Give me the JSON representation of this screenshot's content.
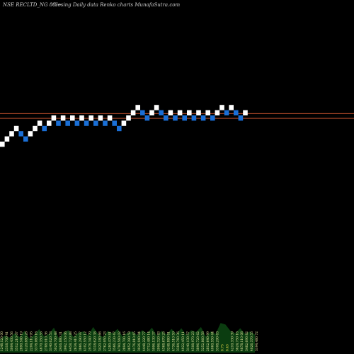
{
  "header": {
    "symbol": "NSE RECLTD_NG 8%~",
    "subtitle": "Closing Daily data  Renko  charts MunafaSutra.com"
  },
  "colors": {
    "background": "#000000",
    "up_brick": "#ffffff",
    "down_brick": "#1a6fd6",
    "level_line": "#b24a2a",
    "volume_fill": "#0b3d10",
    "volume_labels": "#e8e8a0",
    "volume_labels_highlight": "#f4e04d"
  },
  "chart_data": {
    "type": "renko",
    "title": "",
    "xlabel": "",
    "ylabel": "",
    "bricks": [
      {
        "dir": "up",
        "level": 0
      },
      {
        "dir": "up",
        "level": 1
      },
      {
        "dir": "up",
        "level": 2
      },
      {
        "dir": "up",
        "level": 3
      },
      {
        "dir": "down",
        "level": 2
      },
      {
        "dir": "down",
        "level": 1
      },
      {
        "dir": "up",
        "level": 2
      },
      {
        "dir": "up",
        "level": 3
      },
      {
        "dir": "up",
        "level": 4
      },
      {
        "dir": "down",
        "level": 3
      },
      {
        "dir": "up",
        "level": 4
      },
      {
        "dir": "up",
        "level": 5
      },
      {
        "dir": "down",
        "level": 4
      },
      {
        "dir": "up",
        "level": 5
      },
      {
        "dir": "down",
        "level": 4
      },
      {
        "dir": "up",
        "level": 5
      },
      {
        "dir": "down",
        "level": 4
      },
      {
        "dir": "up",
        "level": 5
      },
      {
        "dir": "down",
        "level": 4
      },
      {
        "dir": "up",
        "level": 5
      },
      {
        "dir": "down",
        "level": 4
      },
      {
        "dir": "up",
        "level": 5
      },
      {
        "dir": "down",
        "level": 4
      },
      {
        "dir": "up",
        "level": 5
      },
      {
        "dir": "down",
        "level": 4
      },
      {
        "dir": "down",
        "level": 3
      },
      {
        "dir": "up",
        "level": 4
      },
      {
        "dir": "up",
        "level": 5
      },
      {
        "dir": "up",
        "level": 6
      },
      {
        "dir": "up",
        "level": 7
      },
      {
        "dir": "down",
        "level": 6
      },
      {
        "dir": "down",
        "level": 5
      },
      {
        "dir": "up",
        "level": 6
      },
      {
        "dir": "up",
        "level": 7
      },
      {
        "dir": "down",
        "level": 6
      },
      {
        "dir": "down",
        "level": 5
      },
      {
        "dir": "up",
        "level": 6
      },
      {
        "dir": "down",
        "level": 5
      },
      {
        "dir": "up",
        "level": 6
      },
      {
        "dir": "down",
        "level": 5
      },
      {
        "dir": "up",
        "level": 6
      },
      {
        "dir": "down",
        "level": 5
      },
      {
        "dir": "up",
        "level": 6
      },
      {
        "dir": "down",
        "level": 5
      },
      {
        "dir": "up",
        "level": 6
      },
      {
        "dir": "down",
        "level": 5
      },
      {
        "dir": "up",
        "level": 6
      },
      {
        "dir": "up",
        "level": 7
      },
      {
        "dir": "down",
        "level": 6
      },
      {
        "dir": "up",
        "level": 7
      },
      {
        "dir": "down",
        "level": 6
      },
      {
        "dir": "down",
        "level": 5
      },
      {
        "dir": "up",
        "level": 6
      }
    ],
    "reference_levels": [
      6.35,
      5.45
    ],
    "volume_labels": [
      "1248,120 00",
      "2318,700 41",
      "3004,430 56",
      "3512,210 07",
      "2890,540 19",
      "4120,880 28",
      "2204,110 95",
      "3378,060 16",
      "4670,350 55",
      "2788,910 36",
      "3140,620 53",
      "5024,700 48",
      "2416,880 31",
      "3992,150 06",
      "4458,720 88",
      "2634,410 25",
      "3866,290 97",
      "4102,550 12",
      "2978,340 79",
      "5318,620 38",
      "3420,180 66",
      "2762,950 23",
      "4280,470 81",
      "3566,230 47",
      "4790,560 02",
      "2894,700 16",
      "3652,390 58",
      "4176,810 65",
      "3026,940 04",
      "4448,220 77",
      "3712,480 14",
      "5096,130 37",
      "2906,320 83",
      "4368,670 25",
      "3248,880 81",
      "4736,510 59",
      "3384,760 36",
      "4922,450 11",
      "3140,130 57",
      "4508,970 23",
      "3896,720 62",
      "5252,860 58",
      "2812,640 99",
      "4060,550 44",
      "3308,290 63",
      "6.75",
      "6.43",
      "4210,330 39",
      "3624,750 16",
      "4878,110 08",
      "3482,690 82",
      "4026,370 55",
      "3194,480 72"
    ],
    "volume_levels": [
      0.42,
      0.55,
      0.48,
      0.62,
      0.5,
      0.7,
      0.45,
      0.58,
      0.75,
      0.52,
      0.6,
      0.8,
      0.46,
      0.66,
      0.72,
      0.5,
      0.64,
      0.68,
      0.55,
      0.82,
      0.6,
      0.5,
      0.7,
      0.62,
      0.76,
      0.52,
      0.64,
      0.68,
      0.56,
      0.72,
      0.62,
      0.8,
      0.54,
      0.7,
      0.58,
      0.76,
      0.6,
      0.78,
      0.56,
      0.72,
      0.66,
      0.82,
      0.52,
      0.68,
      0.6,
      0.95,
      0.9,
      0.7,
      0.62,
      0.78,
      0.6,
      0.68,
      0.58
    ]
  }
}
